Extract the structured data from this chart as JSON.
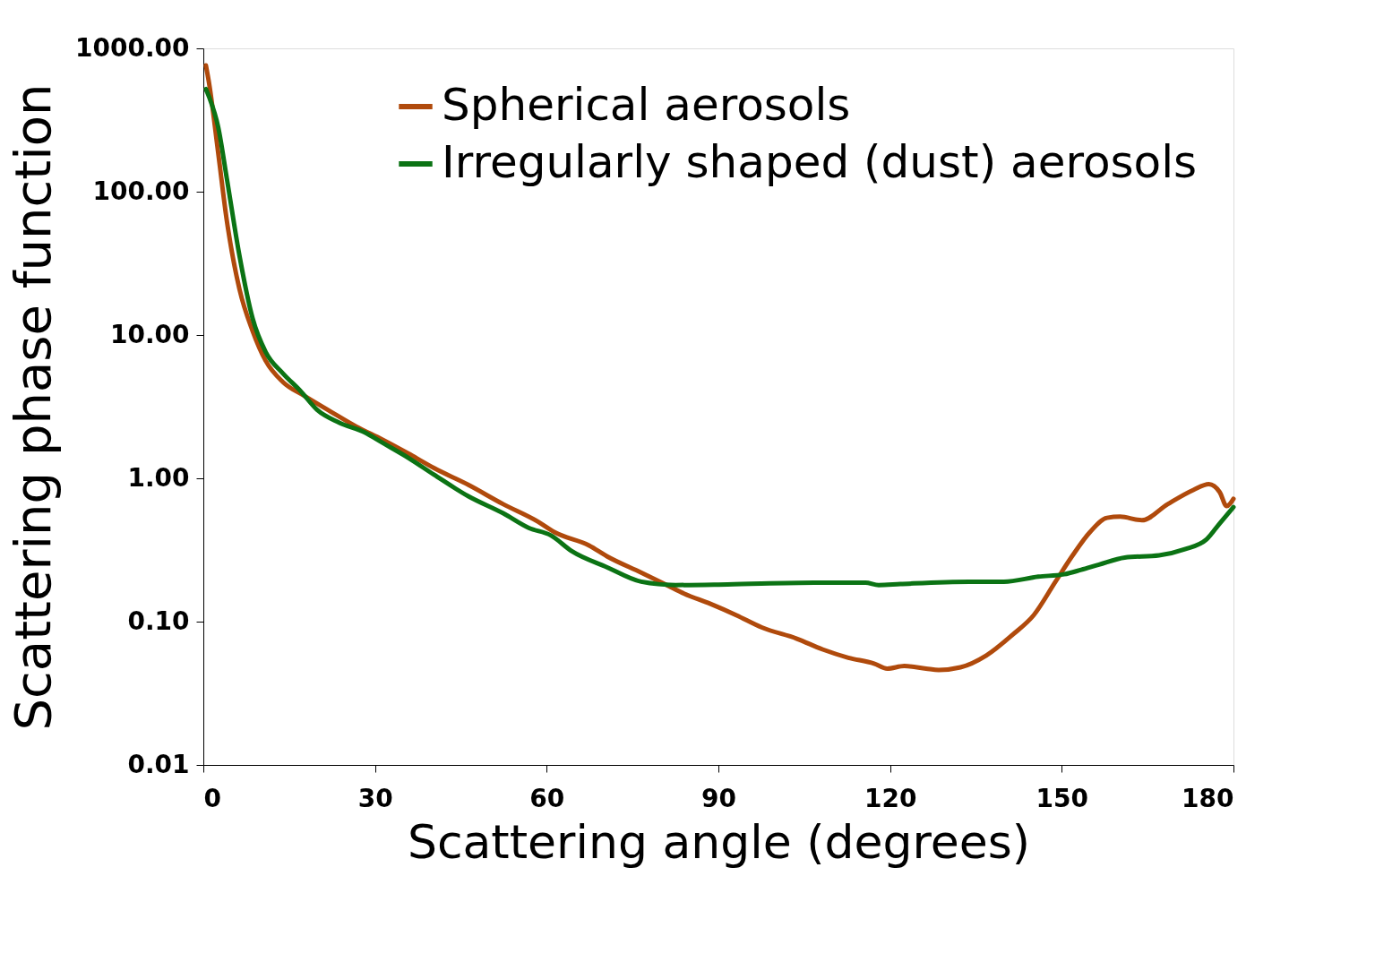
{
  "chart_data": {
    "type": "line",
    "xlabel": "Scattering angle (degrees)",
    "ylabel": "Scattering phase function",
    "log": "y",
    "grid": false,
    "legend": "top right",
    "marker": "none",
    "line_style": "solid",
    "xlim": [
      0,
      180
    ],
    "xticks": [
      0,
      30,
      60,
      90,
      120,
      150,
      180
    ],
    "ylim": [
      0.01,
      1000
    ],
    "yticks": [
      {
        "value": 0.01,
        "label": "0.01"
      },
      {
        "value": 0.1,
        "label": "0.10"
      },
      {
        "value": 1,
        "label": "1.00"
      },
      {
        "value": 10,
        "label": "10.00"
      },
      {
        "value": 100,
        "label": "100.00"
      },
      {
        "value": 1000,
        "label": "1000.00"
      }
    ],
    "series": [
      {
        "name": "Spherical aerosols",
        "color": "#b04a0c",
        "x": [
          0.45,
          1.05,
          2.6,
          4.1,
          6.3,
          8.6,
          10.9,
          13.9,
          17.7,
          22.2,
          26.7,
          31.2,
          35.8,
          40.3,
          46.3,
          52.4,
          58.4,
          61.4,
          67.4,
          70.5,
          76.5,
          81,
          84,
          88.6,
          93.1,
          97.6,
          103.7,
          108.2,
          112.7,
          117.2,
          119.5,
          122.5,
          126.3,
          128.5,
          132.3,
          136.8,
          141.4,
          145.1,
          148.9,
          151.9,
          154.9,
          157.9,
          160.2,
          164,
          168.5,
          173,
          175.7,
          177.6,
          178.8,
          180
        ],
        "values": [
          760,
          556,
          186,
          63,
          21,
          10.7,
          6.6,
          4.7,
          3.75,
          2.93,
          2.3,
          1.87,
          1.49,
          1.18,
          0.9,
          0.66,
          0.5,
          0.42,
          0.34,
          0.286,
          0.22,
          0.18,
          0.157,
          0.133,
          0.111,
          0.091,
          0.076,
          0.064,
          0.056,
          0.051,
          0.047,
          0.049,
          0.047,
          0.046,
          0.048,
          0.058,
          0.081,
          0.111,
          0.19,
          0.29,
          0.42,
          0.53,
          0.54,
          0.51,
          0.66,
          0.83,
          0.91,
          0.8,
          0.64,
          0.72
        ]
      },
      {
        "name": "Irregularly shaped (dust) aerosols",
        "color": "#0b7314",
        "x": [
          0.45,
          1.05,
          2.6,
          4.1,
          6.3,
          8.6,
          10.9,
          13.9,
          16.9,
          19.9,
          23.7,
          28.2,
          31.2,
          35.8,
          40.3,
          46.3,
          52.4,
          56.9,
          60.7,
          64.4,
          70.5,
          76.5,
          82.5,
          91.6,
          106.7,
          115.7,
          118,
          121.8,
          133.8,
          139.9,
          145.9,
          150.4,
          153.4,
          156.5,
          161,
          167,
          171.5,
          175.3,
          177.6,
          180
        ],
        "values": [
          520,
          454,
          282,
          124,
          36,
          13.1,
          7.6,
          5.4,
          4.1,
          3.0,
          2.45,
          2.09,
          1.78,
          1.39,
          1.06,
          0.75,
          0.57,
          0.45,
          0.4,
          0.31,
          0.24,
          0.19,
          0.18,
          0.182,
          0.187,
          0.187,
          0.18,
          0.183,
          0.19,
          0.19,
          0.206,
          0.214,
          0.23,
          0.25,
          0.28,
          0.29,
          0.32,
          0.375,
          0.485,
          0.63
        ]
      }
    ]
  }
}
